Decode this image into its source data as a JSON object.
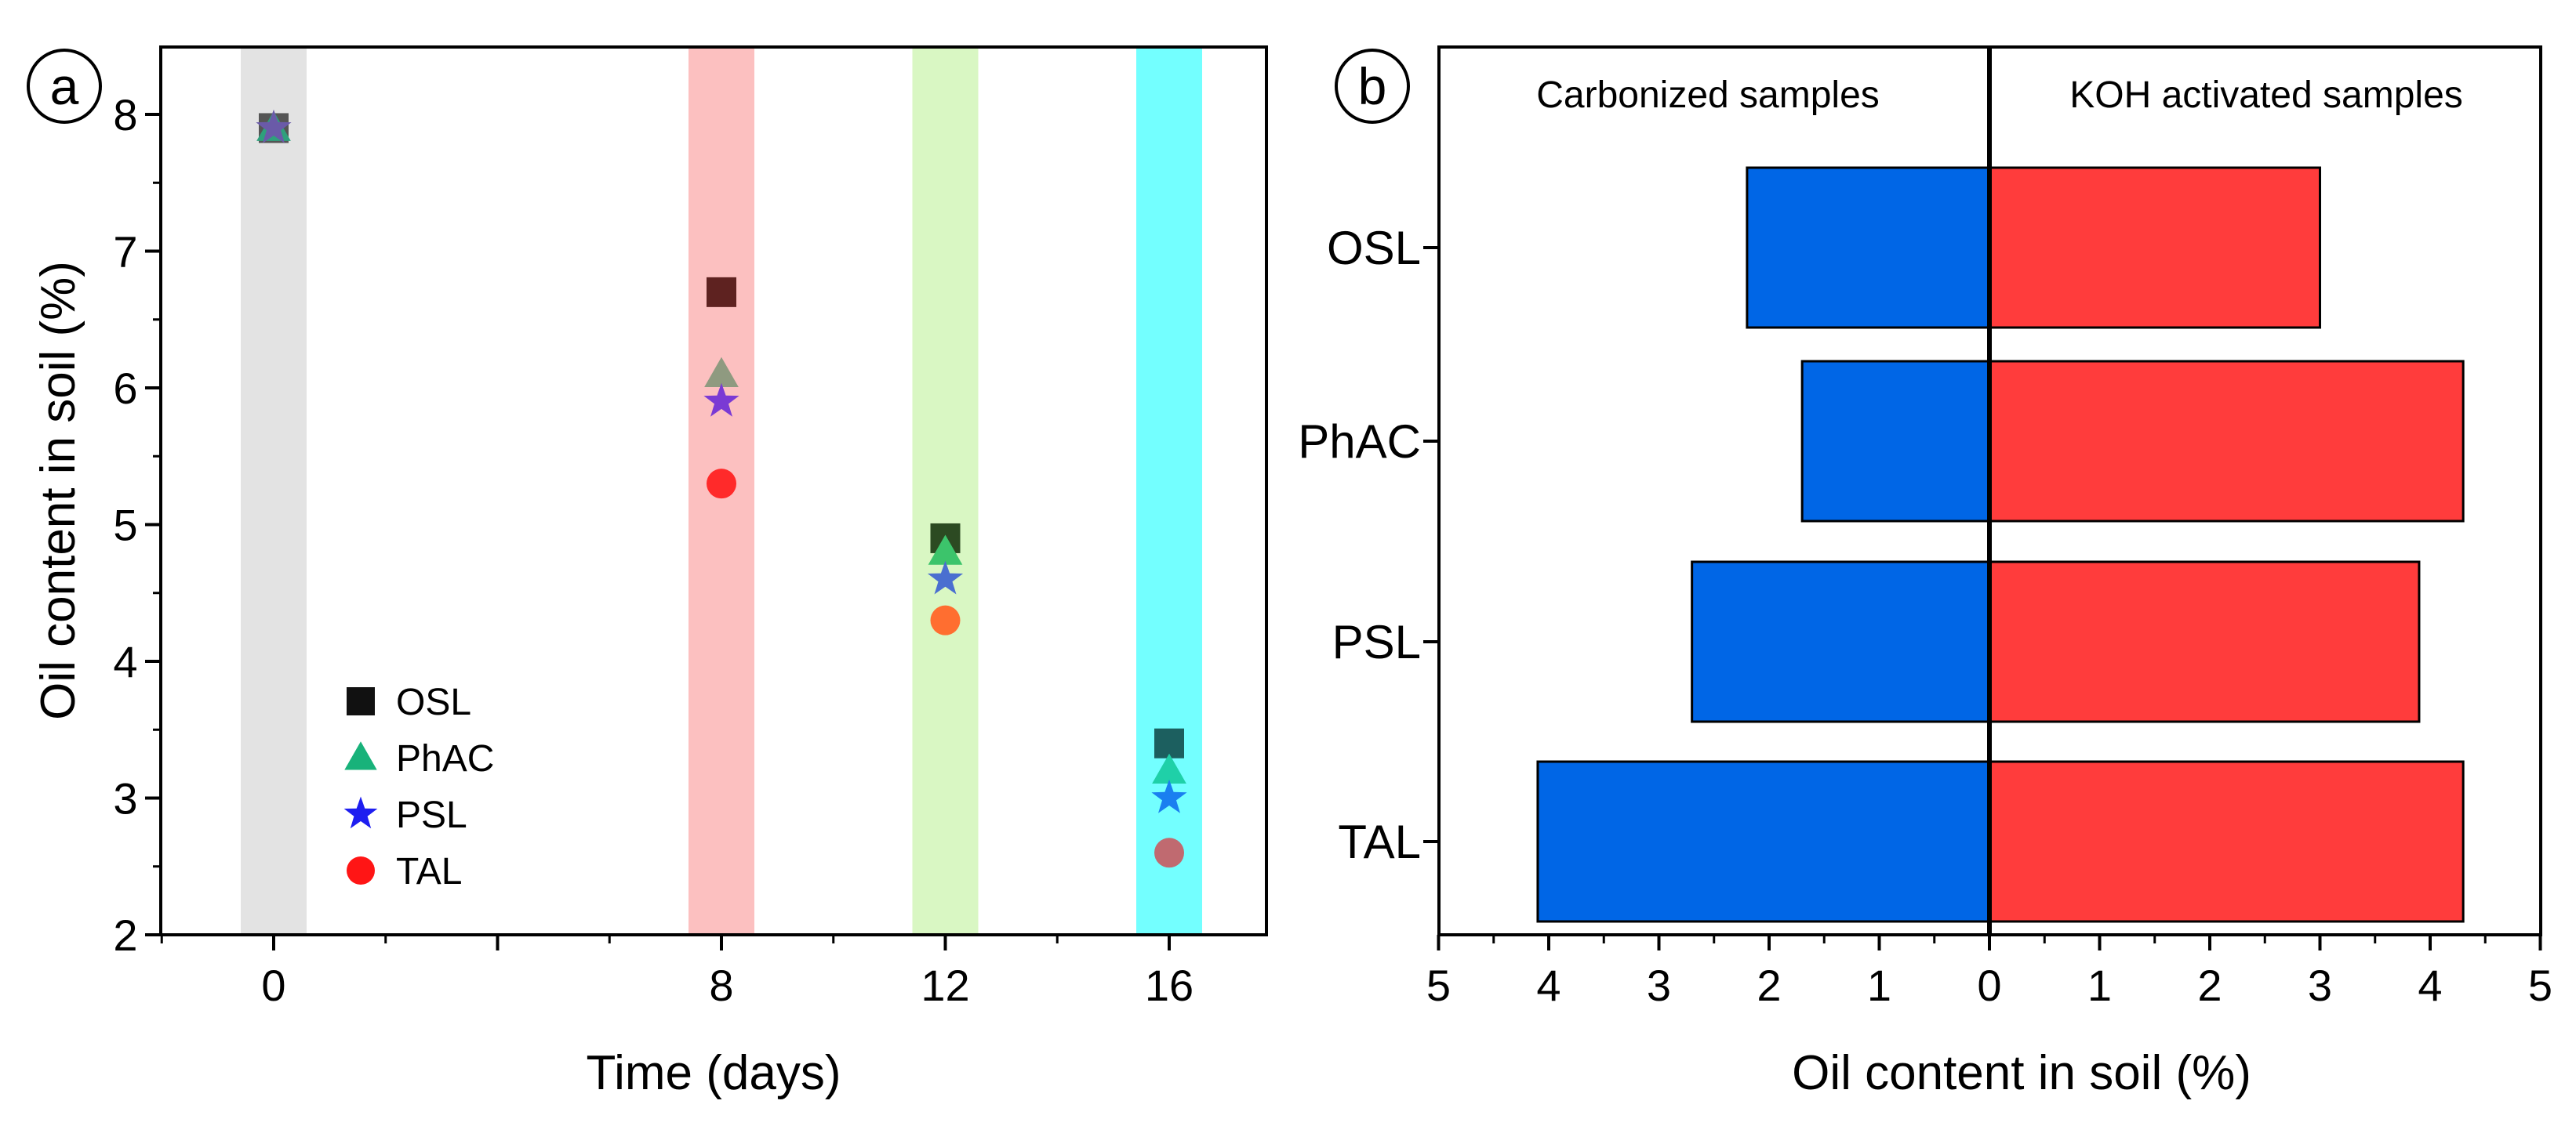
{
  "chart_data": [
    {
      "panel": "a",
      "type": "scatter",
      "xlabel": "Time (days)",
      "ylabel": "Oil content in soil (%)",
      "ylim": [
        2,
        8.5
      ],
      "x_ticks": [
        0,
        8,
        12,
        16
      ],
      "y_ticks": [
        2,
        3,
        4,
        5,
        6,
        7,
        8
      ],
      "grid": false,
      "legend_position": "bottom-left",
      "highlight_bands": [
        {
          "x": 0,
          "color": "#e3e3e3"
        },
        {
          "x": 8,
          "color": "#fcc0c0"
        },
        {
          "x": 12,
          "color": "#d9f7c3"
        },
        {
          "x": 16,
          "color": "#73ffff"
        }
      ],
      "series": [
        {
          "name": "OSL",
          "marker": "square",
          "color": "#111111",
          "points": [
            {
              "x": 0,
              "y": 7.9,
              "color": "#555555"
            },
            {
              "x": 8,
              "y": 6.7,
              "color": "#5e2220"
            },
            {
              "x": 12,
              "y": 4.9,
              "color": "#2c4a22"
            },
            {
              "x": 16,
              "y": 3.4,
              "color": "#1c5f5f"
            }
          ]
        },
        {
          "name": "PhAC",
          "marker": "triangle",
          "color": "#18b27a",
          "points": [
            {
              "x": 0,
              "y": 7.9,
              "color": "#2fa07c"
            },
            {
              "x": 8,
              "y": 6.1,
              "color": "#8f9a80"
            },
            {
              "x": 12,
              "y": 4.8,
              "color": "#3cc46b"
            },
            {
              "x": 16,
              "y": 3.2,
              "color": "#1fd0a8"
            }
          ]
        },
        {
          "name": "PSL",
          "marker": "star",
          "color": "#1e1ef0",
          "points": [
            {
              "x": 0,
              "y": 7.9,
              "color": "#6a5aa8"
            },
            {
              "x": 8,
              "y": 5.9,
              "color": "#7a3ad4"
            },
            {
              "x": 12,
              "y": 4.6,
              "color": "#4a6fd0"
            },
            {
              "x": 16,
              "y": 3.0,
              "color": "#1a7ff0"
            }
          ]
        },
        {
          "name": "TAL",
          "marker": "circle",
          "color": "#ff1515",
          "points": [
            {
              "x": 8,
              "y": 5.3,
              "color": "#ff2a2a"
            },
            {
              "x": 12,
              "y": 4.3,
              "color": "#ff6e30"
            },
            {
              "x": 16,
              "y": 2.6,
              "color": "#c06a70"
            }
          ]
        }
      ]
    },
    {
      "panel": "b",
      "type": "bar",
      "orientation": "horizontal",
      "xlabel": "Oil content in soil (%)",
      "xlim": [
        -5,
        5
      ],
      "x_ticks": [
        -5,
        -4,
        -3,
        -2,
        -1,
        0,
        1,
        2,
        3,
        4,
        5
      ],
      "x_tick_labels": [
        "5",
        "4",
        "3",
        "2",
        "1",
        "0",
        "1",
        "2",
        "3",
        "4",
        "5"
      ],
      "categories": [
        "OSL",
        "PhAC",
        "PSL",
        "TAL"
      ],
      "series": [
        {
          "name": "Carbonized samples",
          "color": "#0066e6",
          "side": "left",
          "values": [
            2.2,
            1.7,
            2.7,
            4.1
          ]
        },
        {
          "name": "KOH activated samples",
          "color": "#ff3c3c",
          "side": "right",
          "values": [
            3.0,
            4.3,
            3.9,
            4.3
          ]
        }
      ]
    }
  ]
}
